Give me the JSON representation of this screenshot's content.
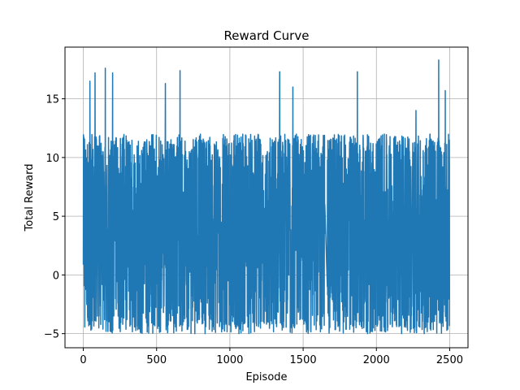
{
  "chart_data": {
    "type": "line",
    "title": "Reward Curve",
    "xlabel": "Episode",
    "ylabel": "Total Reward",
    "xlim": [
      -125,
      2625
    ],
    "ylim": [
      -6.2,
      19.4
    ],
    "grid": true,
    "xticks": [
      0,
      500,
      1000,
      1500,
      2000,
      2500
    ],
    "xtick_labels": [
      "0",
      "500",
      "1000",
      "1500",
      "2000",
      "2500"
    ],
    "yticks": [
      -5,
      0,
      5,
      10,
      15
    ],
    "ytick_labels": [
      "−5",
      "0",
      "5",
      "10",
      "15"
    ],
    "series": [
      {
        "color": "#1f77b4",
        "num_points": 2500,
        "x_range": [
          0,
          2499
        ],
        "y_min": -5,
        "y_max": 18.3,
        "typical_range": [
          -4,
          12
        ],
        "peaks": [
          {
            "x": 45,
            "y": 16.5
          },
          {
            "x": 80,
            "y": 17.2
          },
          {
            "x": 150,
            "y": 17.6
          },
          {
            "x": 200,
            "y": 17.2
          },
          {
            "x": 560,
            "y": 16.3
          },
          {
            "x": 660,
            "y": 17.4
          },
          {
            "x": 1340,
            "y": 17.3
          },
          {
            "x": 1430,
            "y": 16.0
          },
          {
            "x": 1870,
            "y": 17.3
          },
          {
            "x": 2425,
            "y": 18.3
          },
          {
            "x": 2270,
            "y": 14.0
          },
          {
            "x": 2470,
            "y": 15.7
          }
        ],
        "gap": {
          "x_from": 1648,
          "x_to": 1665,
          "y_from": 6,
          "y_to": -1
        }
      }
    ]
  }
}
